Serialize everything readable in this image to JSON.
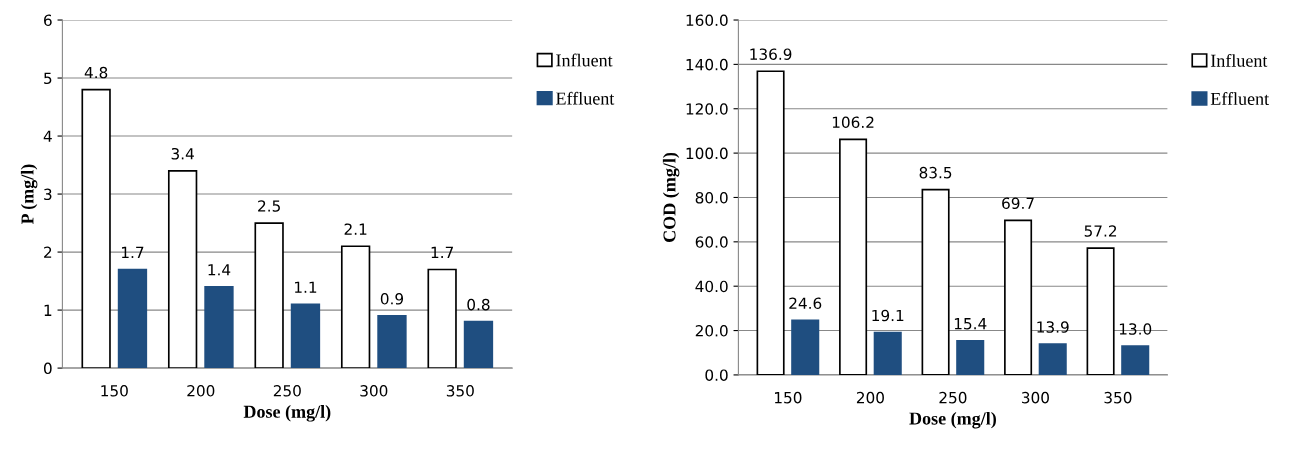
{
  "chart_data": [
    {
      "type": "bar",
      "xlabel": "Dose (mg/l)",
      "ylabel": "P (mg/l)",
      "categories": [
        "150",
        "200",
        "250",
        "300",
        "350"
      ],
      "series": [
        {
          "name": "Influent",
          "color": "#ffffff",
          "values": [
            4.8,
            3.4,
            2.5,
            2.1,
            1.7
          ]
        },
        {
          "name": "Effluent",
          "color": "#1f4e80",
          "values": [
            1.7,
            1.4,
            1.1,
            0.9,
            0.8
          ]
        }
      ],
      "ylim": [
        0,
        6
      ],
      "yticks": [
        0,
        1,
        2,
        3,
        4,
        5,
        6
      ],
      "grid": "y",
      "legend": "right",
      "data_labels": true
    },
    {
      "type": "bar",
      "xlabel": "Dose (mg/l)",
      "ylabel": "COD (mg/l)",
      "categories": [
        "150",
        "200",
        "250",
        "300",
        "350"
      ],
      "series": [
        {
          "name": "Influent",
          "color": "#ffffff",
          "values": [
            136.9,
            106.2,
            83.5,
            69.7,
            57.2
          ],
          "value_labels": [
            "136.9",
            "106.2",
            "83.5",
            "69.7",
            "57.2"
          ]
        },
        {
          "name": "Effluent",
          "color": "#1f4e80",
          "values": [
            24.6,
            19.1,
            15.4,
            13.9,
            13.0
          ],
          "value_labels": [
            "24.6",
            "19.1",
            "15.4",
            "13.9",
            "13.0"
          ]
        }
      ],
      "ylim": [
        0,
        160
      ],
      "yticks": [
        {
          "value": 0,
          "label": "0.0"
        },
        {
          "value": 20,
          "label": "20.0"
        },
        {
          "value": 40,
          "label": "40.0"
        },
        {
          "value": 60,
          "label": "60.0"
        },
        {
          "value": 80,
          "label": "80.0"
        },
        {
          "value": 100,
          "label": "100.0"
        },
        {
          "value": 120,
          "label": "120.0"
        },
        {
          "value": 140,
          "label": "140.0"
        },
        {
          "value": 160,
          "label": "160.0"
        }
      ],
      "grid": "y",
      "legend": "right"
    }
  ]
}
